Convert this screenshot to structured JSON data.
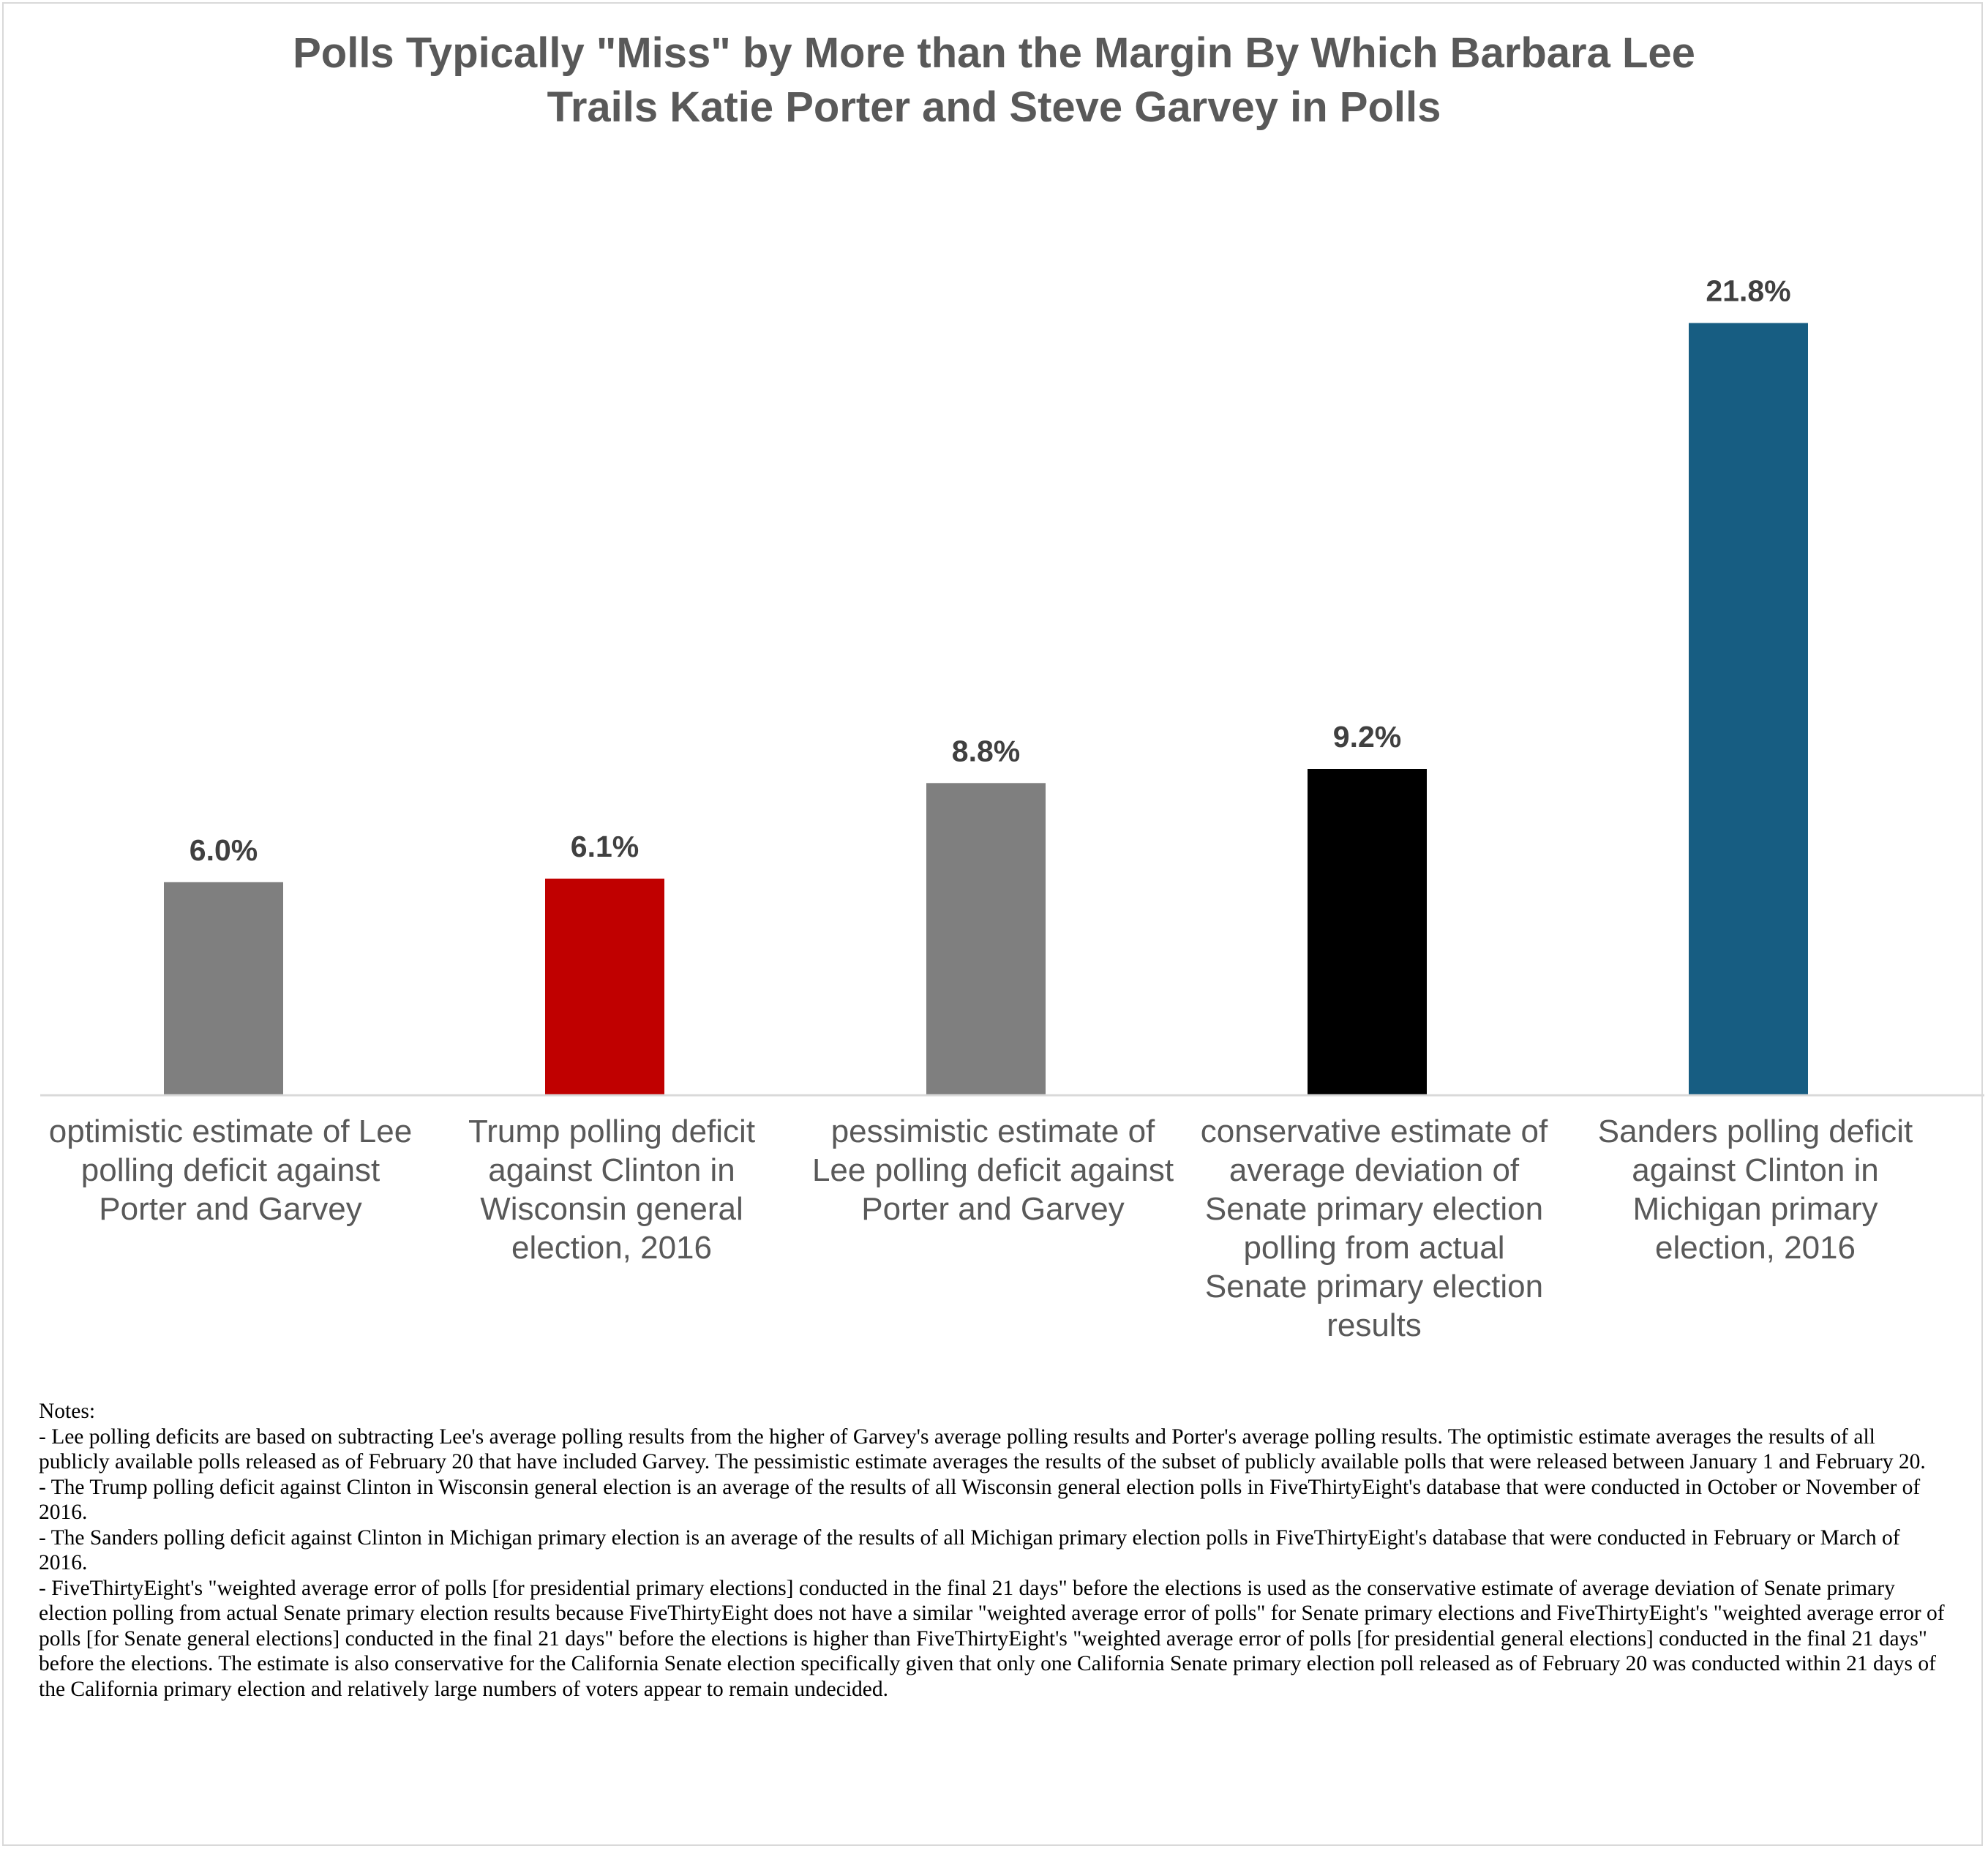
{
  "chart_data": {
    "type": "bar",
    "title": "Polls Typically \"Miss\" by More than the Margin By Which Barbara Lee Trails Katie Porter and Steve Garvey in Polls",
    "title_lines": [
      "Polls Typically \"Miss\" by More than the Margin By Which Barbara Lee",
      "Trails Katie Porter and Steve Garvey in Polls"
    ],
    "categories": [
      "optimistic estimate of Lee polling deficit against Porter and Garvey",
      "Trump polling deficit against Clinton in Wisconsin general election, 2016",
      "pessimistic estimate of Lee polling deficit against Porter and Garvey",
      "conservative estimate of average deviation of Senate primary election polling from actual Senate primary election results",
      "Sanders polling deficit against Clinton in Michigan primary election, 2016"
    ],
    "category_lines": [
      "optimistic estimate of Lee\npolling deficit against\nPorter and Garvey",
      "Trump polling deficit\nagainst Clinton in\nWisconsin general\nelection, 2016",
      "pessimistic estimate of\nLee polling deficit against\nPorter and Garvey",
      "conservative estimate of\naverage deviation of\nSenate primary election\npolling from actual\nSenate primary election\nresults",
      "Sanders polling deficit\nagainst Clinton in\nMichigan primary\nelection, 2016"
    ],
    "values": [
      6.0,
      6.1,
      8.8,
      9.2,
      21.8
    ],
    "data_labels": [
      "6.0%",
      "6.1%",
      "8.8%",
      "9.2%",
      "21.8%"
    ],
    "colors": [
      "#7f7f7f",
      "#c00000",
      "#7f7f7f",
      "#000000",
      "#175d82"
    ],
    "ylim": [
      0,
      25
    ],
    "xlabel": "",
    "ylabel": "",
    "grid": false,
    "legend": "none"
  },
  "notes": [
    "Notes:",
    "- Lee polling deficits are based on subtracting Lee's average polling results from the higher of Garvey's average polling results and Porter's average polling results. The optimistic estimate averages the results of all publicly available polls released as of February 20 that have included Garvey. The pessimistic estimate averages the results of the subset of publicly available polls that were released between January 1 and February 20.",
    "- The Trump polling deficit against Clinton in Wisconsin general election is an average of the results of all Wisconsin general election polls in FiveThirtyEight's database that were conducted in October or November of 2016.",
    "- The Sanders polling deficit against Clinton in Michigan primary election is an average of the results of all Michigan primary election polls in FiveThirtyEight's database that were conducted in February or March of 2016.",
    "- FiveThirtyEight's \"weighted average error of polls [for presidential primary elections] conducted in the final 21 days\" before the elections is used as the conservative estimate of average deviation of Senate primary election polling from actual Senate primary election results because FiveThirtyEight does not have a similar \"weighted average error of polls\" for Senate primary elections and FiveThirtyEight's \"weighted average error of polls [for Senate general elections] conducted in the final 21 days\" before the elections is higher than FiveThirtyEight's \"weighted average error of polls [for presidential general elections] conducted in the final 21 days\" before the elections. The estimate is also conservative for the California Senate election specifically given that only one California Senate primary election poll released as of February 20 was conducted within 21 days of the California primary election and relatively large numbers of voters appear to remain undecided."
  ]
}
